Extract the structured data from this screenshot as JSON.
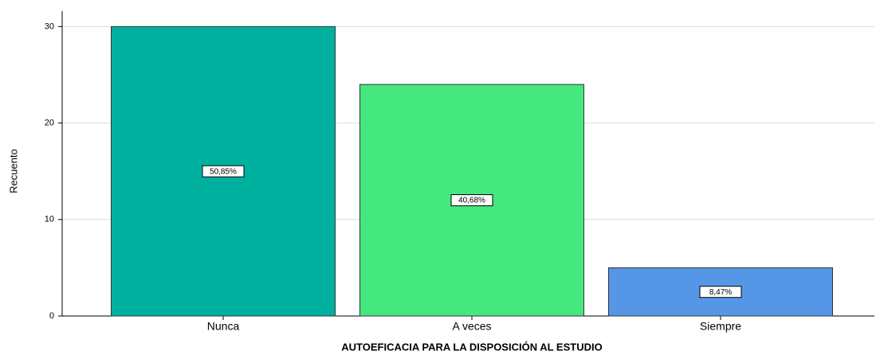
{
  "chart_data": {
    "type": "bar",
    "x_label": "AUTOEFICACIA PARA LA DISPOSICIÓN AL ESTUDIO",
    "y_label": "Recuento",
    "categories": [
      "Nunca",
      "A veces",
      "Siempre"
    ],
    "values": [
      30,
      24,
      5
    ],
    "percentages": [
      50.85,
      40.68,
      8.47
    ],
    "percentage_labels": [
      "50,85%",
      "40,68%",
      "8,47%"
    ],
    "colors": [
      "#00b09e",
      "#44e87e",
      "#5596e6"
    ],
    "ylim": [
      0,
      31.6
    ],
    "yticks": [
      0,
      10,
      20,
      30
    ],
    "grid": true
  }
}
